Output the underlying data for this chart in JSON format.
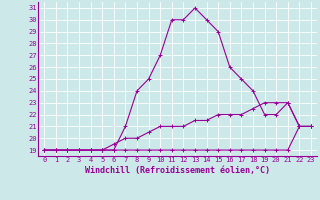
{
  "background_color": "#cce8e8",
  "grid_color": "#ffffff",
  "line_color": "#990099",
  "xlabel": "Windchill (Refroidissement éolien,°C)",
  "xlim": [
    -0.5,
    23.5
  ],
  "ylim": [
    18.5,
    31.5
  ],
  "xticks": [
    0,
    1,
    2,
    3,
    4,
    5,
    6,
    7,
    8,
    9,
    10,
    11,
    12,
    13,
    14,
    15,
    16,
    17,
    18,
    19,
    20,
    21,
    22,
    23
  ],
  "yticks": [
    19,
    20,
    21,
    22,
    23,
    24,
    25,
    26,
    27,
    28,
    29,
    30,
    31
  ],
  "line1_x": [
    0,
    1,
    2,
    3,
    4,
    5,
    6,
    7,
    8,
    9,
    10,
    11,
    12,
    13,
    14,
    15,
    16,
    17,
    18,
    19,
    20,
    21,
    22,
    23
  ],
  "line1_y": [
    19,
    19,
    19,
    19,
    19,
    19,
    19,
    21,
    24,
    25,
    27,
    30,
    30,
    31,
    30,
    29,
    26,
    25,
    24,
    22,
    22,
    23,
    21,
    21
  ],
  "line2_x": [
    0,
    1,
    2,
    3,
    4,
    5,
    6,
    7,
    8,
    9,
    10,
    11,
    12,
    13,
    14,
    15,
    16,
    17,
    18,
    19,
    20,
    21,
    22,
    23
  ],
  "line2_y": [
    19,
    19,
    19,
    19,
    19,
    19,
    19,
    19,
    19,
    19,
    19,
    19,
    19,
    19,
    19,
    19,
    19,
    19,
    19,
    19,
    19,
    19,
    21,
    21
  ],
  "line3_x": [
    0,
    1,
    2,
    3,
    4,
    5,
    6,
    7,
    8,
    9,
    10,
    11,
    12,
    13,
    14,
    15,
    16,
    17,
    18,
    19,
    20,
    21,
    22,
    23
  ],
  "line3_y": [
    19,
    19,
    19,
    19,
    19,
    19,
    19.5,
    20,
    20,
    20.5,
    21,
    21,
    21,
    21.5,
    21.5,
    22,
    22,
    22,
    22.5,
    23,
    23,
    23,
    21,
    21
  ],
  "marker": "+",
  "markersize": 3,
  "linewidth": 0.8,
  "tick_fontsize": 5,
  "xlabel_fontsize": 6
}
